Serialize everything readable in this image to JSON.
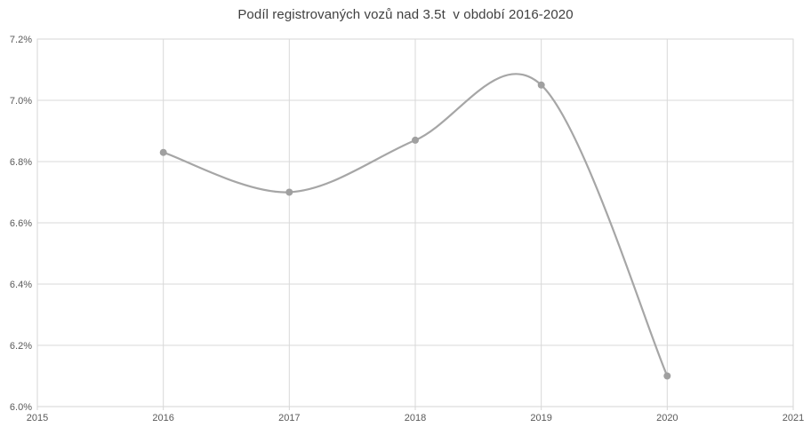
{
  "chart_data": {
    "type": "line",
    "smooth": true,
    "title": "Podíl registrovaných vozů nad 3.5t  v období 2016-2020",
    "x": [
      2016,
      2017,
      2018,
      2019,
      2020
    ],
    "values": [
      6.83,
      6.7,
      6.87,
      7.05,
      6.1
    ],
    "unit": "%",
    "series_name": "Podíl registrovaných vozů nad 3.5t",
    "xlim": [
      2015,
      2021
    ],
    "ylim": [
      6.0,
      7.2
    ],
    "x_ticks": [
      2015,
      2016,
      2017,
      2018,
      2019,
      2020,
      2021
    ],
    "x_tick_labels": [
      "2015",
      "2016",
      "2017",
      "2018",
      "2019",
      "2020",
      "2021"
    ],
    "y_ticks": [
      6.0,
      6.2,
      6.4,
      6.6,
      6.8,
      7.0,
      7.2
    ],
    "y_tick_labels": [
      "6.0%",
      "6.2%",
      "6.4%",
      "6.6%",
      "6.8%",
      "7.0%",
      "7.2%"
    ],
    "grid": true,
    "legend": "none",
    "marker": "circle",
    "colors": {
      "line": "#a6a6a6",
      "marker": "#a0a0a0",
      "grid": "#d9d9d9",
      "axis": "#d6d6d6",
      "tick_label": "#595959",
      "title": "#3f3f3f",
      "background": "#ffffff"
    }
  }
}
